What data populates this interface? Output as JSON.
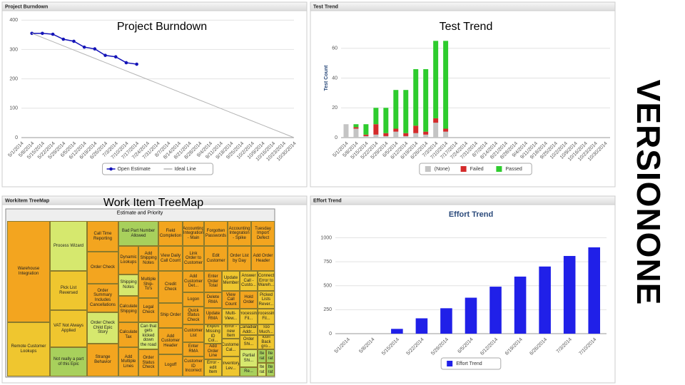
{
  "brand": "VERSIONONE",
  "panels": [
    "Project Burndown",
    "Test Trend",
    "Workitem TreeMap",
    "Effort Trend"
  ],
  "captions": [
    "Project Burndown",
    "Test Trend",
    "Work Item TreeMap"
  ],
  "chart_data": [
    {
      "type": "line",
      "categories": [
        "5/1/2014",
        "5/8/2014",
        "5/15/2014",
        "5/22/2014",
        "5/29/2014",
        "6/5/2014",
        "6/12/2014",
        "6/19/2014",
        "6/26/2014",
        "7/3/2014",
        "7/10/2014",
        "7/17/2014",
        "7/24/2014",
        "7/31/2014",
        "8/7/2014",
        "8/14/2014",
        "8/21/2014",
        "8/28/2014",
        "9/4/2014",
        "9/11/2014",
        "9/18/2014",
        "9/25/2014",
        "10/2/2014",
        "10/9/2014",
        "10/16/2014",
        "10/23/2014",
        "10/30/2014"
      ],
      "series": [
        {
          "name": "Open Estimate",
          "color": "#1414b8",
          "marker": "circle",
          "values": [
            null,
            355,
            355,
            352,
            335,
            328,
            308,
            302,
            280,
            275,
            255,
            250,
            null,
            null,
            null,
            null,
            null,
            null,
            null,
            null,
            null,
            null,
            null,
            null,
            null,
            null,
            null
          ]
        },
        {
          "name": "Ideal Line",
          "color": "#b4b4b4",
          "values": [
            null,
            355,
            340.8,
            326.6,
            312.4,
            298.2,
            284,
            269.8,
            255.6,
            241.4,
            227.2,
            213,
            198.8,
            184.6,
            170.4,
            156.2,
            142,
            127.8,
            113.6,
            99.4,
            85.2,
            71,
            56.8,
            42.6,
            28.4,
            14.2,
            0
          ]
        }
      ],
      "ylim": [
        0,
        420
      ],
      "yticks": [
        0,
        100,
        200,
        300,
        400
      ],
      "grid": true
    },
    {
      "type": "stacked_bar",
      "y_label": "Test Count",
      "categories": [
        "5/1/2014",
        "5/8/2014",
        "5/15/2014",
        "5/22/2014",
        "5/29/2014",
        "6/5/2014",
        "6/12/2014",
        "6/19/2014",
        "6/26/2014",
        "7/3/2014",
        "7/10/2014",
        "7/17/2014",
        "7/24/2014",
        "7/31/2014",
        "8/7/2014",
        "8/14/2014",
        "8/21/2014",
        "8/28/2014",
        "9/4/2014",
        "9/11/2014",
        "9/18/2014",
        "9/25/2014",
        "10/2/2014",
        "10/9/2014",
        "10/16/2014",
        "10/23/2014",
        "10/30/2014"
      ],
      "series": [
        {
          "name": "(None)",
          "color": "#c4c4c4",
          "values": [
            9,
            6,
            1,
            2,
            1,
            4,
            1,
            3,
            2,
            10,
            4,
            null,
            null,
            null,
            null,
            null,
            null,
            null,
            null,
            null,
            null,
            null,
            null,
            null,
            null,
            null,
            null
          ]
        },
        {
          "name": "Failed",
          "color": "#d42a2a",
          "values": [
            0,
            1,
            1,
            7,
            2,
            2,
            2,
            5,
            2,
            3,
            2,
            null,
            null,
            null,
            null,
            null,
            null,
            null,
            null,
            null,
            null,
            null,
            null,
            null,
            null,
            null,
            null
          ]
        },
        {
          "name": "Passed",
          "color": "#2ecc2e",
          "values": [
            0,
            2,
            7,
            11,
            17,
            26,
            29,
            38,
            42,
            52,
            59,
            null,
            null,
            null,
            null,
            null,
            null,
            null,
            null,
            null,
            null,
            null,
            null,
            null,
            null,
            null,
            null
          ]
        }
      ],
      "ylim": [
        0,
        80
      ],
      "yticks": [
        0,
        20,
        40,
        60
      ],
      "grid": true
    },
    {
      "type": "bar",
      "title": "Effort Trend",
      "categories": [
        "5/1/2014",
        "5/8/2014",
        "5/15/2014",
        "5/22/2014",
        "5/29/2014",
        "6/5/2014",
        "6/12/2014",
        "6/19/2014",
        "6/26/2014",
        "7/3/2014",
        "7/10/2014"
      ],
      "series": [
        {
          "name": "Effort Trend",
          "color": "#2020e8",
          "values": [
            null,
            null,
            50,
            160,
            265,
            375,
            490,
            595,
            700,
            810,
            900
          ]
        }
      ],
      "ylim": [
        0,
        1100
      ],
      "yticks": [
        0,
        250,
        500,
        750,
        1000
      ],
      "grid": true
    }
  ],
  "treemap": {
    "title": "Estimate and Priority",
    "cells": [
      "Warehouse Integration",
      "Remote Customer Lookups",
      "Process Wizard",
      "Pick List Reversed",
      "VAT Not Always Applied",
      "Not really a part of this Epic",
      "Call Time Reporting",
      "Order Check",
      "Order Summary Includes Cancellations",
      "Order Check Child Epic Story",
      "Strange Behavior",
      "Bad Part Number Allowed",
      "Dynamic Lookups",
      "Shipping Notes",
      "Calculate Shipping",
      "Calculate Tax",
      "Add Multiple Lines",
      "Add Shipping Notes",
      "Multiple Ship-To's",
      "Legal Check",
      "Can that gets kicked down the road",
      "Order Status Check",
      "Field Completion",
      "View Daily Call Count",
      "Credit Check",
      "Ship Order",
      "Add Customer Header",
      "Logoff",
      "Accounting Integration - Main",
      "Link Order to Customer",
      "Add Customer Det...",
      "Logon",
      "Quick Status Check",
      "Customer List",
      "Enter RMA",
      "Customer ID Incorrect",
      "Forgotten Passwords",
      "Edit Customer",
      "Accounting Integration - Spike",
      "Order List by Day",
      "Tuesday Import Defect",
      "Add Order Header",
      "Enter Order Total",
      "Delete RMA",
      "Update RMA",
      "Export Missing ID Col...",
      "Add Order Line",
      "Error - edit Item",
      "Update Member",
      "View Call Count",
      "Multi-View...",
      "Error - new Item",
      "Customer Cal...",
      "Inventory Lev...",
      "Answer Call - Custo...",
      "Hold Order",
      "Processing Fil...",
      "Canadian Addr...",
      "Order Shi...",
      "Partial Shi...",
      "Re...",
      "Connect Error to Wareh...",
      "Picked Lists Rever...",
      "Processing Fil...",
      "Too Much...",
      "Icon Back gro...",
      "Ite rat",
      "Ite rat",
      "Ite rat",
      "Ite rat"
    ]
  }
}
